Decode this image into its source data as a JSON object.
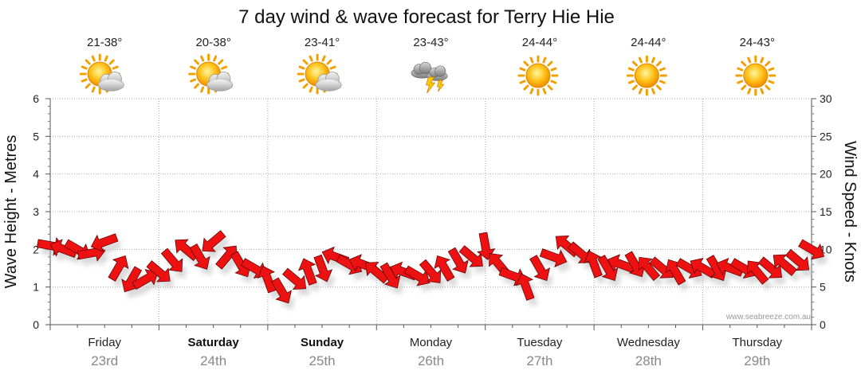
{
  "title": "7 day wind & wave forecast for Terry Hie Hie",
  "credit": "www.seabreeze.com.au",
  "y_left_label": "Wave Height - Metres",
  "y_right_label": "Wind Speed - Knots",
  "y_left_ticks": [
    "0",
    "1",
    "2",
    "3",
    "4",
    "5",
    "6"
  ],
  "y_right_ticks": [
    "0",
    "5",
    "10",
    "15",
    "20",
    "25",
    "30"
  ],
  "days": [
    {
      "name": "Friday",
      "date": "23rd",
      "temp": "21-38°",
      "icon": "partly-cloudy-icon",
      "bold": false
    },
    {
      "name": "Saturday",
      "date": "24th",
      "temp": "20-38°",
      "icon": "partly-cloudy-icon",
      "bold": true
    },
    {
      "name": "Sunday",
      "date": "25th",
      "temp": "23-41°",
      "icon": "partly-cloudy-icon",
      "bold": true
    },
    {
      "name": "Monday",
      "date": "26th",
      "temp": "23-43°",
      "icon": "thunderstorm-icon",
      "bold": false
    },
    {
      "name": "Tuesday",
      "date": "27th",
      "temp": "24-44°",
      "icon": "sunny-icon",
      "bold": false
    },
    {
      "name": "Wednesday",
      "date": "28th",
      "temp": "24-44°",
      "icon": "sunny-icon",
      "bold": false
    },
    {
      "name": "Thursday",
      "date": "29th",
      "temp": "24-43°",
      "icon": "sunny-icon",
      "bold": false
    }
  ],
  "colors": {
    "arrow": "#ee1111",
    "arrow_stroke": "#550000",
    "grid": "#aaaaaa",
    "shadow": "#bbbbbb"
  },
  "chart_data": {
    "type": "line",
    "x_unit": "hour_of_week",
    "ylim_left": [
      0,
      6
    ],
    "ylim_right": [
      0,
      30
    ],
    "series": [
      {
        "name": "Wind Speed - Knots",
        "axis": "right",
        "x": [
          0,
          3,
          6,
          9,
          12,
          15,
          18,
          21,
          24,
          27,
          30,
          33,
          36,
          39,
          42,
          45,
          48,
          51,
          54,
          57,
          60,
          63,
          66,
          69,
          72,
          75,
          78,
          81,
          84,
          87,
          90,
          93,
          96,
          99,
          102,
          105,
          108,
          111,
          114,
          117,
          120,
          123,
          126,
          129,
          132,
          135,
          138,
          141,
          144,
          147,
          150,
          153,
          156,
          159,
          162,
          165,
          168
        ],
        "values": [
          10.5,
          10,
          10,
          9.5,
          11,
          7.5,
          6,
          6,
          7,
          8.5,
          10,
          9,
          11,
          9,
          8,
          7.5,
          6,
          4.5,
          6,
          7,
          7.5,
          9,
          8,
          8,
          7,
          6.5,
          7,
          6.5,
          7,
          7.5,
          8.5,
          9,
          10.5,
          8,
          6.5,
          5,
          7.5,
          9,
          10.5,
          9.5,
          8,
          7.5,
          8,
          8,
          7.5,
          7.5,
          7,
          7.5,
          7.5,
          7.5,
          7.5,
          7.5,
          7,
          7.5,
          8,
          8.5,
          10
        ]
      }
    ],
    "arrow_directions_deg": [
      10,
      200,
      30,
      350,
      160,
      300,
      120,
      330,
      40,
      50,
      220,
      60,
      140,
      310,
      60,
      30,
      250,
      60,
      40,
      250,
      70,
      200,
      30,
      200,
      220,
      60,
      200,
      30,
      50,
      240,
      60,
      40,
      80,
      230,
      20,
      250,
      60,
      20,
      220,
      40,
      250,
      60,
      200,
      60,
      230,
      40,
      240,
      30,
      210,
      60,
      200,
      30,
      230,
      40,
      220,
      40,
      30
    ]
  }
}
